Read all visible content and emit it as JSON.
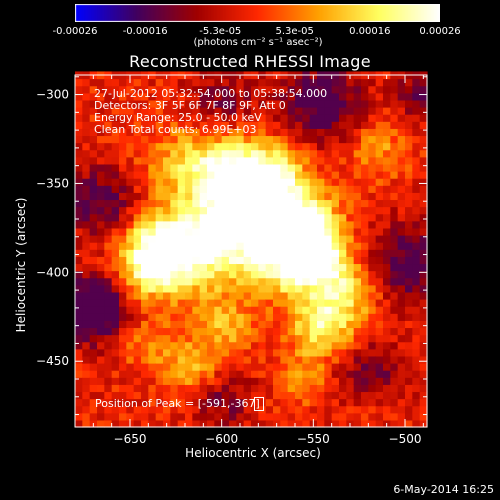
{
  "title": "Reconstructed RHESSI Image",
  "colorbar": {
    "ticks": [
      "-0.00026",
      "-0.00016",
      "-5.3e-05",
      "5.3e-05",
      "0.00016",
      "0.00026"
    ],
    "tick_values": [
      -0.00026,
      -0.00016,
      -5.3e-05,
      5.3e-05,
      0.00016,
      0.00026
    ],
    "range": [
      -0.00026,
      0.00026
    ],
    "units": "(photons cm⁻² s⁻¹ asec⁻²)",
    "colormap": [
      "#0000ff",
      "#400060",
      "#a00000",
      "#ff2800",
      "#ffa000",
      "#ffff60",
      "#ffffff"
    ]
  },
  "annotations": {
    "time": "27-Jul-2012 05:32:54.000 to 05:38:54.000",
    "detectors": "Detectors: 3F 5F 6F 7F 8F 9F, Att 0",
    "energy": "Energy Range: 25.0 - 50.0 keV",
    "clean": "Clean     Total counts: 6.99E+03",
    "peak": "Position of Peak = [-591,-367]"
  },
  "footer_date": "6-May-2014 16:25",
  "chart_data": {
    "type": "heatmap",
    "title": "Reconstructed RHESSI Image",
    "xlabel": "Heliocentric X (arcsec)",
    "ylabel": "Heliocentric Y (arcsec)",
    "xlim": [
      -680,
      -488
    ],
    "ylim": [
      -487,
      -289
    ],
    "xticks": [
      -650,
      -600,
      -550,
      -500
    ],
    "yticks": [
      -300,
      -350,
      -400,
      -450
    ],
    "x_tick_labels": [
      "−650",
      "−600",
      "−550",
      "−500"
    ],
    "y_tick_labels": [
      "−300",
      "−350",
      "−400",
      "−450"
    ],
    "value_range": [
      -0.00026,
      0.00026
    ],
    "peak": [
      -591,
      -367
    ],
    "bright_regions": [
      {
        "x": -591,
        "y": -367,
        "rel": 1.0,
        "sigma": 18
      },
      {
        "x": -573,
        "y": -348,
        "rel": 0.75,
        "sigma": 14
      },
      {
        "x": -555,
        "y": -373,
        "rel": 0.8,
        "sigma": 14
      },
      {
        "x": -568,
        "y": -392,
        "rel": 0.75,
        "sigma": 15
      },
      {
        "x": -548,
        "y": -392,
        "rel": 0.8,
        "sigma": 12
      },
      {
        "x": -614,
        "y": -390,
        "rel": 0.7,
        "sigma": 15
      },
      {
        "x": -635,
        "y": -385,
        "rel": 0.85,
        "sigma": 13
      },
      {
        "x": -640,
        "y": -400,
        "rel": 0.55,
        "sigma": 12
      },
      {
        "x": -620,
        "y": -340,
        "rel": 0.45,
        "sigma": 16
      },
      {
        "x": -595,
        "y": -340,
        "rel": 0.55,
        "sigma": 14
      },
      {
        "x": -545,
        "y": -430,
        "rel": 0.75,
        "sigma": 12
      },
      {
        "x": -530,
        "y": -410,
        "rel": 0.55,
        "sigma": 12
      },
      {
        "x": -600,
        "y": -430,
        "rel": 0.45,
        "sigma": 12
      },
      {
        "x": -615,
        "y": -455,
        "rel": 0.45,
        "sigma": 11
      },
      {
        "x": -555,
        "y": -460,
        "rel": 0.35,
        "sigma": 10
      },
      {
        "x": -515,
        "y": -330,
        "rel": 0.35,
        "sigma": 12
      },
      {
        "x": -640,
        "y": -440,
        "rel": 0.35,
        "sigma": 10
      },
      {
        "x": -520,
        "y": -470,
        "rel": 0.3,
        "sigma": 10
      }
    ],
    "dim_regions": [
      {
        "x": -670,
        "y": -420,
        "rel": 0.9,
        "sigma": 13
      },
      {
        "x": -665,
        "y": -360,
        "rel": 0.5,
        "sigma": 14
      },
      {
        "x": -545,
        "y": -305,
        "rel": 0.6,
        "sigma": 16
      },
      {
        "x": -500,
        "y": -395,
        "rel": 0.55,
        "sigma": 16
      },
      {
        "x": -520,
        "y": -460,
        "rel": 0.5,
        "sigma": 14
      },
      {
        "x": -600,
        "y": -305,
        "rel": 0.35,
        "sigma": 14
      },
      {
        "x": -490,
        "y": -300,
        "rel": 0.5,
        "sigma": 10
      },
      {
        "x": -600,
        "y": -470,
        "rel": 0.4,
        "sigma": 12
      }
    ]
  }
}
